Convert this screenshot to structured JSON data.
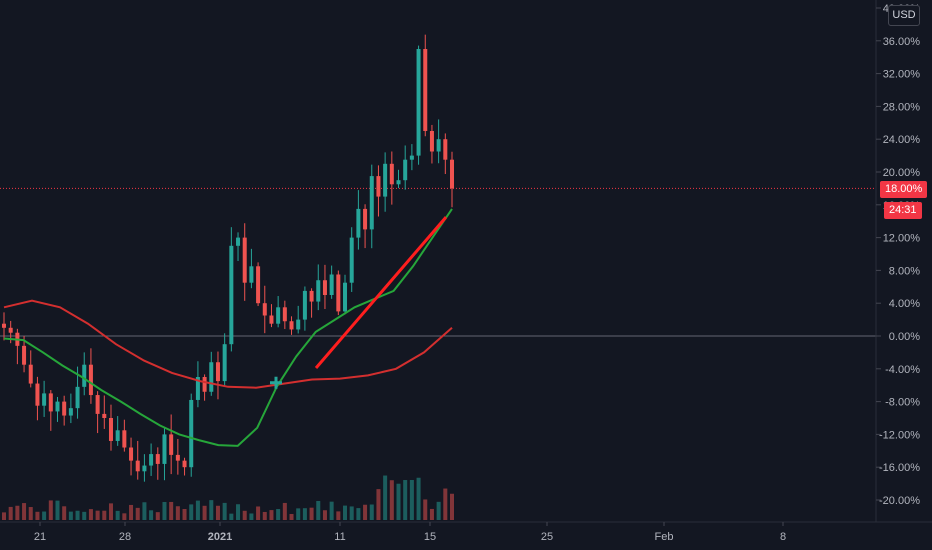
{
  "currency_button": "USD",
  "last_value_badge": "18.00%",
  "countdown_badge": "24:31",
  "colors": {
    "background": "#131722",
    "up_candle": "#26a69a",
    "down_candle": "#ef5350",
    "fast_ma": "#26a63a",
    "slow_ma": "#d32f2f",
    "trendline": "#ff1e1e",
    "price_line": "#f23645",
    "zero_line": "#787b86"
  },
  "chart_data": {
    "type": "candlestick",
    "y_axis": {
      "unit": "%",
      "ticks": [
        "40.00%",
        "36.00%",
        "32.00%",
        "28.00%",
        "24.00%",
        "20.00%",
        "16.00%",
        "12.00%",
        "8.00%",
        "4.00%",
        "0.00%",
        "-4.00%",
        "-8.00%",
        "-12.00%",
        "-16.00%",
        "-20.00%"
      ],
      "range": [
        -22,
        40
      ]
    },
    "x_axis": {
      "ticks": [
        "21",
        "28",
        "2021",
        "11",
        "15",
        "25",
        "Feb",
        "8"
      ],
      "bold_ticks": [
        "2021"
      ]
    },
    "close_series_approx": [
      1.0,
      0.4,
      -1.2,
      -3.5,
      -5.8,
      -8.5,
      -7.0,
      -9.2,
      -8.0,
      -9.7,
      -8.8,
      -6.2,
      -3.5,
      -7.2,
      -9.5,
      -10.0,
      -12.8,
      -11.5,
      -13.6,
      -15.2,
      -16.5,
      -15.8,
      -14.4,
      -15.6,
      -12.0,
      -14.5,
      -15.2,
      -16.0,
      -7.8,
      -5.0,
      -6.8,
      -3.2,
      -5.5,
      -1.0,
      11.0,
      12.0,
      6.5,
      8.5,
      4.0,
      2.5,
      1.5,
      3.5,
      1.8,
      0.8,
      2.0,
      5.5,
      4.2,
      6.8,
      5.0,
      7.5,
      3.0,
      6.5,
      12.0,
      15.5,
      13.0,
      19.5,
      17.0,
      21.0,
      18.5,
      19.0,
      21.5,
      22.0,
      35.0,
      25.0,
      22.5,
      24.0,
      21.5,
      18.0
    ],
    "last_value": 18.0,
    "series": [
      {
        "kind": "moving_average_fast",
        "values_approx": [
          -0.3,
          -0.5,
          -2.0,
          -3.6,
          -5.0,
          -6.6,
          -8.0,
          -9.5,
          -10.9,
          -12.0,
          -12.7,
          -13.3,
          -13.4,
          -11.2,
          -6.2,
          -2.5,
          0.5,
          2.0,
          3.5,
          4.5,
          5.5,
          8.5,
          12.0,
          15.5
        ]
      },
      {
        "kind": "moving_average_slow",
        "values_approx": [
          3.5,
          4.3,
          3.5,
          1.5,
          -1.0,
          -3.0,
          -4.5,
          -5.5,
          -6.2,
          -6.3,
          -5.8,
          -5.3,
          -5.2,
          -4.8,
          -4.0,
          -2.0,
          1.0
        ]
      }
    ]
  }
}
